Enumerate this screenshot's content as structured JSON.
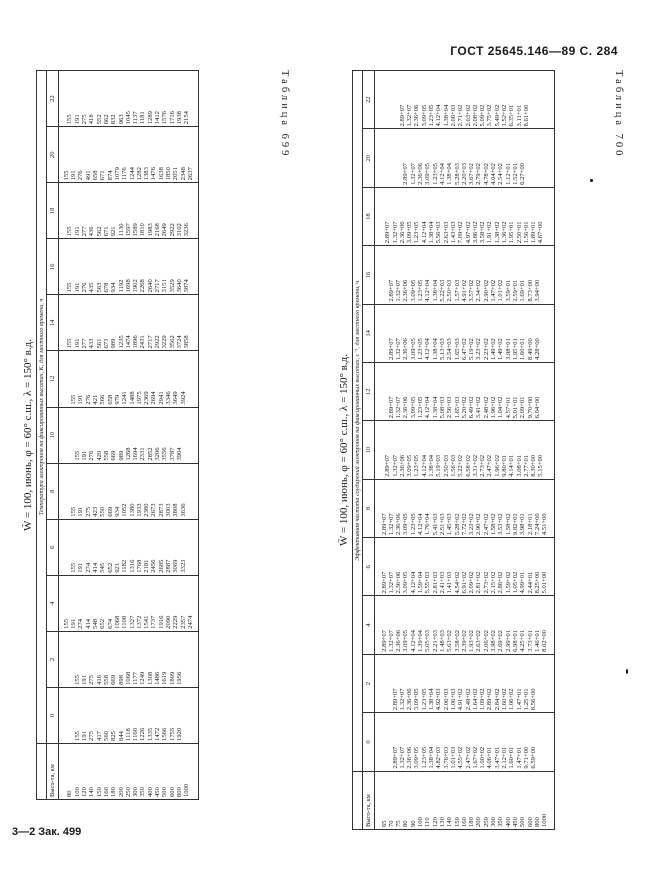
{
  "page": {
    "header": "ГОСТ 25645.146—89 С. 284",
    "footer": "3—2 Зак. 499"
  },
  "table699": {
    "label": "Таблица 699",
    "title": "W̄ = 100, июнь, φ = 60° с.ш., λ = 150° в.д.",
    "caption": "Температура электронов на фиксированных высотах, К, для местного времени, ч",
    "height_header": "Высо-та, км",
    "cols": [
      "0",
      "2",
      "4",
      "6",
      "8",
      "10",
      "12",
      "14",
      "16",
      "18",
      "20",
      "22"
    ],
    "heights": [
      "80",
      "100",
      "120",
      "140",
      "150",
      "160",
      "180",
      "200",
      "250",
      "300",
      "350",
      "400",
      "450",
      "500",
      "600",
      "800",
      "1000"
    ],
    "columns": [
      [
        "155",
        "191",
        "275",
        "417",
        "560",
        "825",
        "844",
        "1118",
        "1160",
        "1226",
        "1335",
        "1472",
        "1566",
        "1755",
        "1920"
      ],
      [
        "155",
        "191",
        "275",
        "416",
        "558",
        "669",
        "898",
        "1068",
        "1177",
        "1249",
        "1308",
        "1486",
        "1619",
        "1809",
        "1956"
      ],
      [
        "155",
        "191",
        "274",
        "414",
        "548",
        "652",
        "674",
        "1068",
        "1108",
        "1327",
        "1372",
        "1541",
        "1737",
        "1916",
        "2090",
        "2229",
        "2357",
        "2474"
      ],
      [
        "155",
        "191",
        "274",
        "414",
        "545",
        "652",
        "921",
        "1182",
        "1316",
        "1768",
        "2181",
        "2456",
        "2685",
        "2887",
        "3069",
        "3323"
      ],
      [
        "155",
        "191",
        "275",
        "423",
        "550",
        "669",
        "934",
        "1052",
        "1380",
        "1933",
        "2380",
        "2673",
        "2873",
        "3003",
        "3808",
        "3636"
      ],
      [
        "155",
        "191",
        "276",
        "420",
        "558",
        "669",
        "989",
        "1268",
        "1694",
        "2331",
        "2852",
        "3206",
        "3556",
        "3787",
        "3904"
      ],
      [
        "155",
        "191",
        "276",
        "421",
        "566",
        "658",
        "979",
        "1241",
        "1488",
        "1975",
        "2369",
        "2694",
        "2941",
        "3346",
        "3649",
        "3924"
      ],
      [
        "155",
        "191",
        "277",
        "433",
        "561",
        "673",
        "989",
        "1235",
        "1474",
        "1896",
        "2431",
        "2717",
        "2922",
        "3229",
        "3562",
        "3724",
        "3858"
      ],
      [
        "155",
        "191",
        "276",
        "435",
        "563",
        "678",
        "934",
        "1192",
        "1698",
        "1902",
        "2268",
        "2640",
        "2717",
        "3151",
        "3529",
        "3640",
        "3874"
      ],
      [
        "155",
        "191",
        "277",
        "436",
        "562",
        "671",
        "921",
        "1130",
        "1597",
        "1589",
        "1810",
        "1983",
        "2168",
        "2649",
        "2922",
        "3102",
        "3236"
      ],
      [
        "155",
        "191",
        "276",
        "491",
        "658",
        "671",
        "874",
        "1079",
        "1176",
        "1244",
        "1282",
        "1383",
        "1476",
        "1638",
        "1850",
        "2051",
        "2348",
        "2637"
      ],
      [
        "155",
        "191",
        "275",
        "418",
        "552",
        "662",
        "832",
        "963",
        "1045",
        "1137",
        "1181",
        "1289",
        "1412",
        "1576",
        "1716",
        "1938",
        "2154"
      ]
    ]
  },
  "table700": {
    "label": "Таблица 700",
    "title": "W̄ = 100, июнь, φ = 60° с.ш., λ = 150° в.д.",
    "caption": "Эффективная частота соударений электронов на фиксированных высотах, с⁻¹, для местного времени, ч",
    "height_header": "Высо-та, км",
    "cols": [
      "0",
      "2",
      "4",
      "6",
      "8",
      "10",
      "12",
      "14",
      "16",
      "18",
      "20",
      "22"
    ],
    "heights": [
      "65",
      "70",
      "75",
      "80",
      "90",
      "100",
      "110",
      "120",
      "130",
      "140",
      "150",
      "160",
      "180",
      "200",
      "250",
      "300",
      "350",
      "400",
      "450",
      "500",
      "600",
      "800",
      "1000"
    ],
    "columns": [
      [
        "2.89+07",
        "1.32+07",
        "2.36+06",
        "3.09+05",
        "1.23+05",
        "1.38+04",
        "4.82+03",
        "3.76+03",
        "1.01+03",
        "4.55+02",
        "2.47+02",
        "1.67+02",
        "1.00+02",
        "4.06+01",
        "3.47+01",
        "2.12+01",
        "1.60+01",
        "1.47+01",
        "9.71+00",
        "6.59+00"
      ],
      [
        "2.89+07",
        "1.32+07",
        "2.36+06",
        "3.09+05",
        "1.23+05",
        "1.38+04",
        "4.92+03",
        "2.06+03",
        "1.06+03",
        "4.91+02",
        "2.49+02",
        "1.64+02",
        "1.09+02",
        "2.89+02",
        "2.84+02",
        "1.60+02",
        "1.06+02",
        "1.47+01",
        "1.25+01",
        "8.56+00"
      ],
      [
        "2.89+07",
        "1.32+07",
        "2.36+06",
        "3.09+05",
        "4.12+04",
        "1.39+04",
        "5.05+03",
        "2.21+03",
        "1.48+03",
        "5.63+02",
        "3.58+02",
        "2.39+02",
        "1.93+02",
        "2.63+02",
        "2.06+02",
        "3.98+02",
        "2.69+02",
        "2.99+01",
        "6.98+01",
        "4.25+01",
        "3.73+01",
        "1.46+01",
        "8.02+00"
      ],
      [
        "2.89+07",
        "1.32+07",
        "2.36+06",
        "3.09+05",
        "4.12+04",
        "1.59+04",
        "5.55+03",
        "2.81+03",
        "2.41+03",
        "1.41+03",
        "4.54+02",
        "6.91+02",
        "2.09+02",
        "2.81+02",
        "2.73+02",
        "2.15+02",
        "2.86+02",
        "1.59+02",
        "1.05+02",
        "4.99+01",
        "2.44+01",
        "8.25+00",
        "5.01+00"
      ],
      [
        "2.89+07",
        "1.32+07",
        "2.36+06",
        "3.09+05",
        "1.23+05",
        "4.12+04",
        "1.76+04",
        "5.41+03",
        "2.51+03",
        "1.45+03",
        "5.28+02",
        "7.72+02",
        "3.23+02",
        "2.90+02",
        "2.47+02",
        "1.58+02",
        "3.53+02",
        "1.58+02",
        "9.82+01",
        "3.98+01",
        "2.18+01",
        "7.24+00",
        "4.51+00"
      ],
      [
        "2.89+07",
        "1.32+07",
        "2.36+06",
        "3.09+05",
        "1.23+05",
        "4.12+04",
        "1.38+04",
        "5.19+03",
        "2.50+03",
        "1.56+03",
        "5.22+02",
        "6.58+02",
        "3.31+02",
        "2.73+02",
        "2.47+02",
        "1.96+02",
        "9.80+01",
        "4.14+01",
        "3.08+01",
        "2.77+01",
        "8.30+00",
        "5.15+00"
      ],
      [
        "2.89+07",
        "1.32+07",
        "2.36+06",
        "3.09+05",
        "1.23+05",
        "4.12+04",
        "1.38+04",
        "5.08+03",
        "2.56+03",
        "1.65+03",
        "5.20+02",
        "6.49+02",
        "3.41+02",
        "2.48+02",
        "1.96+02",
        "1.04+02",
        "4.57+01",
        "5.01+01",
        "2.09+01",
        "9.70+00",
        "6.04+00"
      ],
      [
        "2.89+07",
        "1.32+07",
        "2.36+06",
        "3.09+05",
        "1.23+05",
        "4.12+04",
        "1.38+04",
        "5.13+03",
        "2.54+03",
        "1.65+03",
        "6.47+02",
        "5.19+02",
        "3.23+02",
        "2.23+02",
        "1.49+02",
        "1.49+02",
        "3.98+01",
        "1.95+01",
        "1.60+01",
        "8.49+00",
        "4.28+00"
      ],
      [
        "2.89+07",
        "1.32+07",
        "2.36+06",
        "3.09+05",
        "1.23+05",
        "4.12+04",
        "1.38+04",
        "5.22+03",
        "2.50+03",
        "1.57+03",
        "4.91+02",
        "3.57+02",
        "2.34+02",
        "2.90+02",
        "1.47+02",
        "1.01+02",
        "3.59+01",
        "2.59+01",
        "1.69+01",
        "8.73+00",
        "3.94+00"
      ],
      [
        "2.89+07",
        "1.32+07",
        "2.36+06",
        "3.09+05",
        "1.23+05",
        "4.12+04",
        "1.38+04",
        "5.56+03",
        "2.63+03",
        "1.43+03",
        "7.09+02",
        "4.97+02",
        "3.86+02",
        "3.58+02",
        "1.91+02",
        "1.38+02",
        "1.36+02",
        "1.95+01",
        "2.50+01",
        "1.56+01",
        "1.89+01",
        "4.67+00"
      ],
      [
        "2.89+07",
        "1.32+07",
        "2.36+06",
        "3.09+05",
        "1.23+05",
        "4.12+04",
        "1.38+04",
        "5.28+03",
        "2.20+03",
        "3.67+02",
        "2.79+02",
        "4.78+02",
        "4.04+02",
        "2.54+02",
        "1.12+01",
        "1.52+01",
        "6.27+00"
      ],
      [
        "2.89+07",
        "1.32+07",
        "2.36+06",
        "3.09+05",
        "1.23+05",
        "4.12+04",
        "1.38+04",
        "2.06+03",
        "2.71+02",
        "2.03+02",
        "2.08+02",
        "5.09+02",
        "3.75+02",
        "5.49+02",
        "1.52+02",
        "6.35+01",
        "3.11+01",
        "8.61+00"
      ]
    ]
  }
}
